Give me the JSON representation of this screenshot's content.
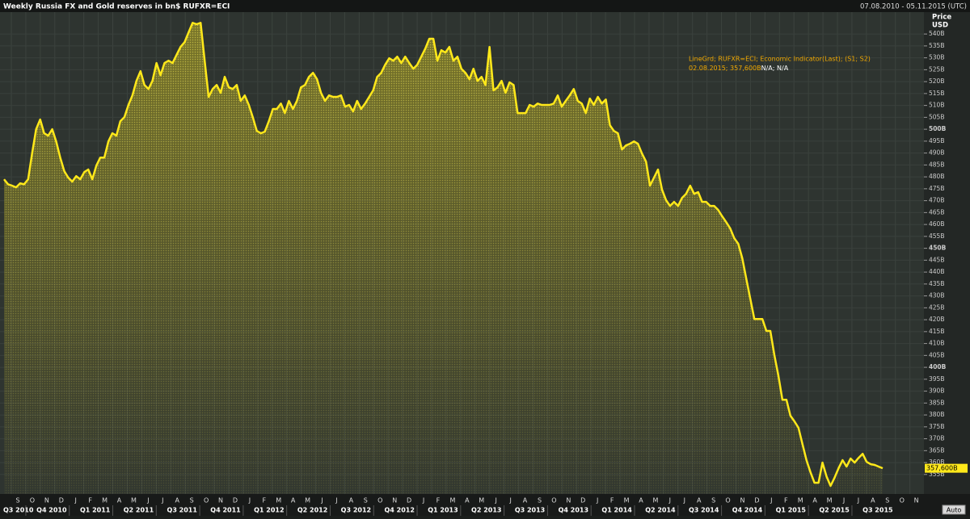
{
  "chart_data": {
    "type": "line",
    "title": "Weekly Russia FX and Gold reserves in bn$ RUFXR=ECI",
    "date_range": "07.08.2010 - 05.11.2015 (UTC)",
    "axis_title": "Price",
    "axis_unit": "USD",
    "annotation": {
      "line1": "LineGrd; RUFXR=ECI; Economic Indicator(Last); (S1; S2)",
      "line2": "02.08.2015; 357,600B",
      "line2_extra": "N/A; N/A"
    },
    "button": "Auto",
    "months": [
      "S",
      "O",
      "N",
      "D",
      "J",
      "F",
      "M",
      "A",
      "M",
      "J",
      "J",
      "A",
      "S",
      "O",
      "N",
      "D",
      "J",
      "F",
      "M",
      "A",
      "M",
      "J",
      "J",
      "A",
      "S",
      "O",
      "N",
      "D",
      "J",
      "F",
      "M",
      "A",
      "M",
      "J",
      "J",
      "A",
      "S",
      "O",
      "N",
      "D",
      "J",
      "F",
      "M",
      "A",
      "M",
      "J",
      "J",
      "A",
      "S",
      "O",
      "N",
      "D",
      "J",
      "F",
      "M",
      "A",
      "M",
      "J",
      "J",
      "A",
      "S",
      "O",
      "N"
    ],
    "quarters": [
      "Q3 2010",
      "Q4 2010",
      "Q1 2011",
      "Q2 2011",
      "Q3 2011",
      "Q4 2011",
      "Q1 2012",
      "Q2 2012",
      "Q3 2012",
      "Q4 2012",
      "Q1 2013",
      "Q2 2013",
      "Q3 2013",
      "Q4 2013",
      "Q1 2014",
      "Q2 2014",
      "Q3 2014",
      "Q4 2014",
      "Q1 2015",
      "Q2 2015",
      "Q3 2015"
    ],
    "ylim": [
      346.8,
      549.2
    ],
    "yticks": [
      {
        "value": 355,
        "label": "355B"
      },
      {
        "value": 360,
        "label": "360B"
      },
      {
        "value": 365,
        "label": "365B"
      },
      {
        "value": 370,
        "label": "370B"
      },
      {
        "value": 375,
        "label": "375B"
      },
      {
        "value": 380,
        "label": "380B"
      },
      {
        "value": 385,
        "label": "385B"
      },
      {
        "value": 390,
        "label": "390B"
      },
      {
        "value": 395,
        "label": "395B"
      },
      {
        "value": 400,
        "label": "400B"
      },
      {
        "value": 405,
        "label": "405B"
      },
      {
        "value": 410,
        "label": "410B"
      },
      {
        "value": 415,
        "label": "415B"
      },
      {
        "value": 420,
        "label": "420B"
      },
      {
        "value": 425,
        "label": "425B"
      },
      {
        "value": 430,
        "label": "430B"
      },
      {
        "value": 435,
        "label": "435B"
      },
      {
        "value": 440,
        "label": "440B"
      },
      {
        "value": 445,
        "label": "445B"
      },
      {
        "value": 450,
        "label": "450B"
      },
      {
        "value": 455,
        "label": "455B"
      },
      {
        "value": 460,
        "label": "460B"
      },
      {
        "value": 465,
        "label": "465B"
      },
      {
        "value": 470,
        "label": "470B"
      },
      {
        "value": 475,
        "label": "475B"
      },
      {
        "value": 480,
        "label": "480B"
      },
      {
        "value": 485,
        "label": "485B"
      },
      {
        "value": 490,
        "label": "490B"
      },
      {
        "value": 495,
        "label": "495B"
      },
      {
        "value": 500,
        "label": "500B"
      },
      {
        "value": 505,
        "label": "505B"
      },
      {
        "value": 510,
        "label": "510B"
      },
      {
        "value": 515,
        "label": "515B"
      },
      {
        "value": 520,
        "label": "520B"
      },
      {
        "value": 525,
        "label": "525B"
      },
      {
        "value": 530,
        "label": "530B"
      },
      {
        "value": 535,
        "label": "535B"
      },
      {
        "value": 540,
        "label": "540B"
      }
    ],
    "grid": true,
    "last_value": {
      "value": 357.6,
      "label": "357,600B"
    },
    "series": [
      {
        "name": "RUFXR=ECI",
        "color": "#ffe81a",
        "values": [
          479.0,
          476.9,
          476.3,
          475.6,
          477.3,
          476.9,
          479.0,
          489.8,
          500.0,
          504.1,
          498.3,
          497.3,
          500.0,
          494.9,
          488.1,
          482.4,
          479.7,
          478.0,
          480.3,
          479.0,
          482.0,
          483.1,
          479.0,
          484.7,
          488.1,
          488.1,
          494.9,
          498.3,
          497.3,
          503.4,
          505.1,
          510.2,
          514.2,
          520.3,
          524.4,
          518.6,
          516.9,
          520.3,
          527.8,
          522.7,
          527.8,
          528.8,
          527.8,
          531.2,
          534.6,
          536.6,
          540.7,
          544.7,
          544.1,
          544.7,
          528.8,
          513.6,
          516.9,
          518.6,
          515.3,
          522.0,
          517.6,
          516.9,
          518.6,
          511.9,
          514.2,
          510.2,
          505.1,
          499.3,
          498.3,
          499.0,
          503.4,
          508.5,
          508.5,
          510.8,
          506.8,
          511.9,
          508.5,
          511.9,
          517.6,
          518.6,
          522.0,
          523.7,
          521.0,
          515.3,
          511.9,
          514.2,
          513.6,
          513.6,
          514.2,
          509.5,
          510.2,
          507.5,
          511.9,
          508.5,
          510.8,
          513.6,
          516.3,
          522.0,
          523.7,
          527.1,
          529.8,
          528.8,
          530.5,
          527.8,
          530.5,
          527.8,
          525.4,
          527.1,
          530.5,
          533.9,
          538.0,
          538.0,
          528.8,
          533.2,
          532.2,
          534.6,
          528.8,
          530.5,
          525.4,
          523.7,
          521.0,
          525.4,
          520.3,
          522.0,
          518.6,
          534.6,
          516.3,
          517.6,
          520.3,
          515.3,
          519.7,
          518.6,
          506.8,
          506.8,
          506.8,
          510.2,
          509.5,
          510.8,
          510.2,
          510.2,
          510.2,
          510.8,
          514.2,
          509.5,
          511.9,
          514.2,
          516.9,
          511.9,
          510.8,
          506.8,
          512.9,
          510.2,
          513.6,
          510.8,
          512.5,
          501.7,
          499.3,
          498.3,
          491.5,
          493.2,
          493.9,
          494.9,
          493.9,
          489.8,
          486.4,
          476.3,
          479.7,
          483.1,
          474.6,
          470.2,
          467.8,
          469.5,
          467.8,
          471.2,
          472.9,
          476.3,
          472.9,
          473.6,
          469.5,
          469.5,
          467.8,
          467.8,
          466.1,
          463.4,
          461.0,
          458.3,
          454.2,
          451.9,
          445.8,
          437.3,
          428.8,
          420.3,
          420.3,
          420.3,
          415.3,
          415.3,
          405.1,
          396.6,
          386.4,
          386.4,
          379.7,
          377.3,
          374.6,
          367.8,
          361.0,
          355.9,
          351.5,
          351.5,
          360.0,
          354.2,
          350.2,
          353.6,
          357.6,
          361.0,
          358.3,
          361.7,
          360.0,
          362.0,
          363.7,
          360.3,
          359.3,
          359.0,
          358.3,
          357.6
        ]
      }
    ]
  }
}
